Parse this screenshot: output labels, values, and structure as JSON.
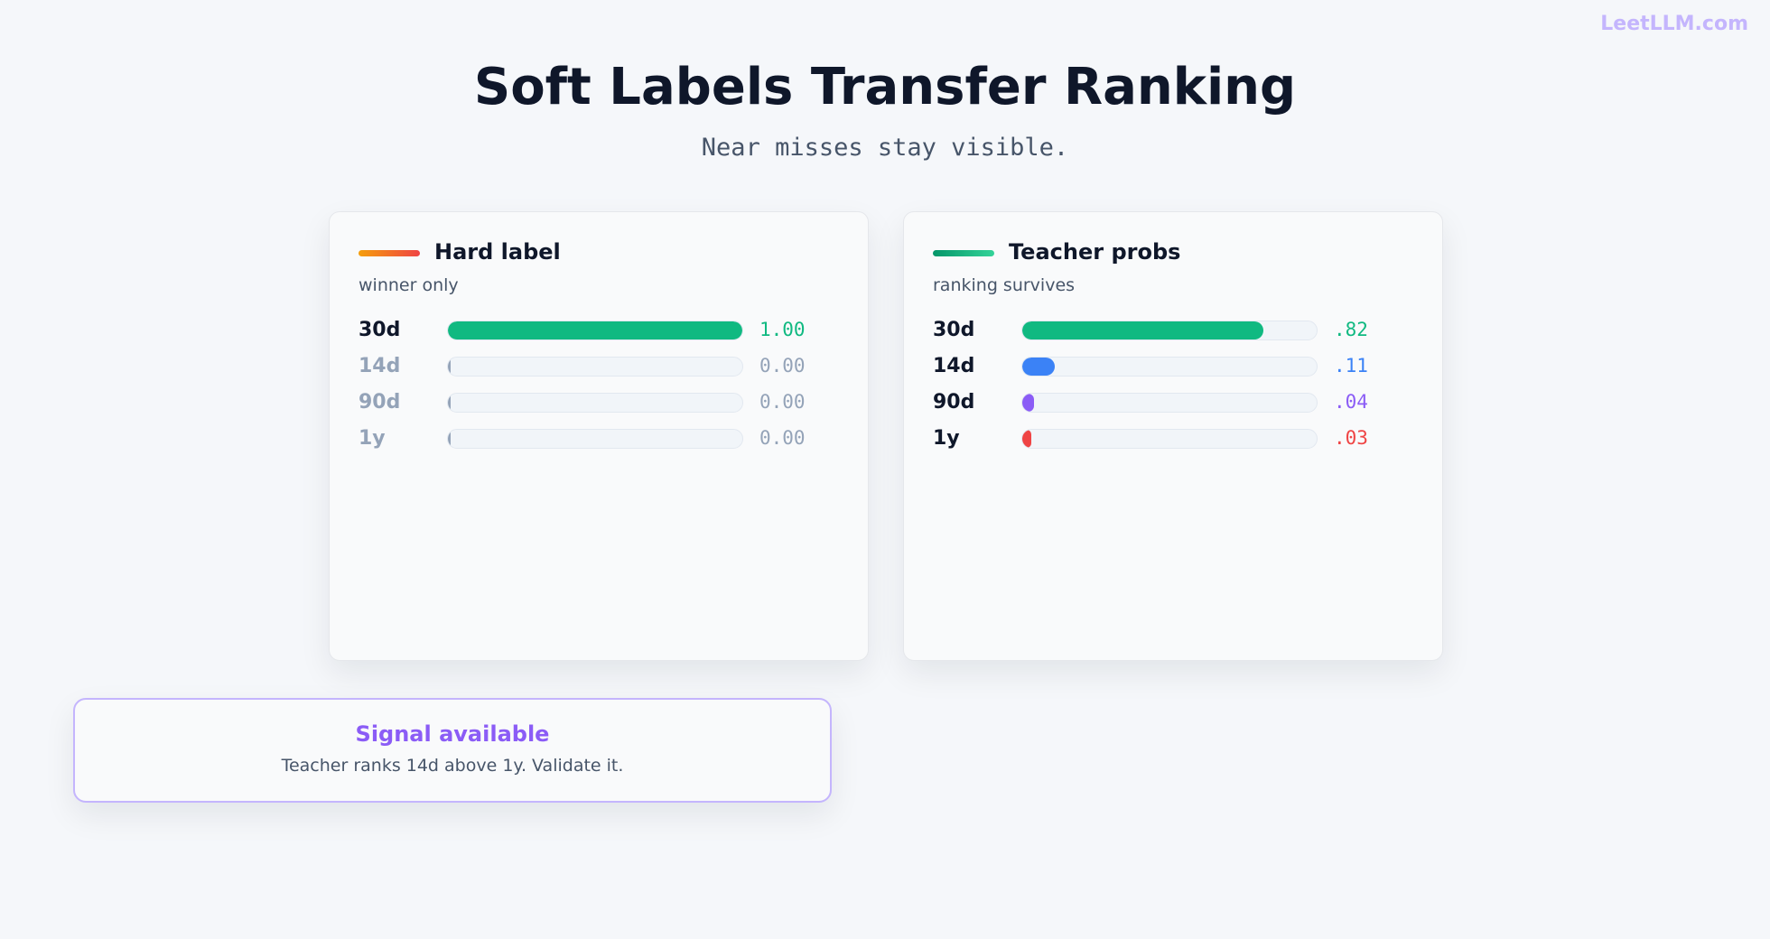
{
  "brand": "LeetLLM.com",
  "title": "Soft Labels Transfer Ranking",
  "subtitle": "Near misses stay visible.",
  "panels": [
    {
      "heading": "Hard label",
      "caption": "winner only",
      "accent": [
        "#f59e0b",
        "#ef4444"
      ],
      "rows": [
        {
          "label": "30d",
          "value": 1.0,
          "value_label": "1.00",
          "color": "#10b981",
          "muted": false
        },
        {
          "label": "14d",
          "value": 0.0,
          "value_label": "0.00",
          "color": "#94a3b8",
          "muted": true
        },
        {
          "label": "90d",
          "value": 0.0,
          "value_label": "0.00",
          "color": "#94a3b8",
          "muted": true
        },
        {
          "label": "1y",
          "value": 0.0,
          "value_label": "0.00",
          "color": "#94a3b8",
          "muted": true
        }
      ]
    },
    {
      "heading": "Teacher probs",
      "caption": "ranking survives",
      "accent": [
        "#059669",
        "#34d399"
      ],
      "rows": [
        {
          "label": "30d",
          "value": 0.82,
          "value_label": ".82",
          "color": "#10b981",
          "muted": false
        },
        {
          "label": "14d",
          "value": 0.11,
          "value_label": ".11",
          "color": "#3b82f6",
          "muted": false
        },
        {
          "label": "90d",
          "value": 0.04,
          "value_label": ".04",
          "color": "#8b5cf6",
          "muted": false
        },
        {
          "label": "1y",
          "value": 0.03,
          "value_label": ".03",
          "color": "#ef4444",
          "muted": false
        }
      ]
    }
  ],
  "callout": {
    "title": "Signal available",
    "text": "Teacher ranks 14d above 1y. Validate it."
  }
}
